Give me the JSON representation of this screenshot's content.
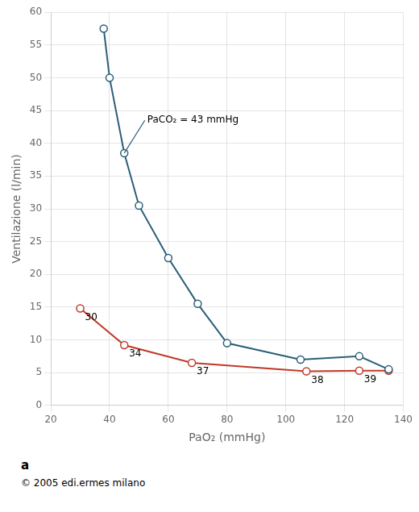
{
  "chart_data": {
    "type": "line",
    "xlabel": "PaO₂ (mmHg)",
    "ylabel": "Ventilazione (l/min)",
    "series": [
      {
        "color": "#2a5f78",
        "marker": "o",
        "line_style": "solid",
        "x": [
          38,
          40,
          45,
          50,
          60,
          70,
          80,
          105,
          125,
          135
        ],
        "values": [
          57.5,
          50.0,
          38.5,
          30.5,
          22.5,
          15.5,
          9.5,
          7.0,
          7.5,
          5.5
        ]
      },
      {
        "color": "#c0392b",
        "marker": "o",
        "line_style": "solid",
        "x": [
          30,
          45,
          68,
          107,
          125,
          135
        ],
        "values": [
          14.8,
          9.2,
          6.5,
          5.2,
          5.3,
          5.3
        ]
      }
    ],
    "annotations": [
      {
        "text": "30",
        "x": 30,
        "y": 14.8
      },
      {
        "text": "34",
        "x": 45,
        "y": 9.2
      },
      {
        "text": "37",
        "x": 68,
        "y": 6.5
      },
      {
        "text": "38",
        "x": 107,
        "y": 5.2
      },
      {
        "text": "39",
        "x": 125,
        "y": 5.3
      },
      {
        "text": "PaCO₂ = 43 mmHg",
        "x": 45,
        "y": 38.5,
        "text_x": 52,
        "text_y": 43.5,
        "color": "#2a5f78"
      }
    ],
    "panel_label": "a",
    "caption": "© 2005 edi.ermes milano",
    "xlim": [
      20,
      140
    ],
    "xticks": [
      20,
      40,
      60,
      80,
      100,
      120,
      140
    ],
    "ylim": [
      0,
      60
    ],
    "yticks": [
      0,
      5,
      10,
      15,
      20,
      25,
      30,
      35,
      40,
      45,
      50,
      55,
      60
    ],
    "grid": true
  }
}
